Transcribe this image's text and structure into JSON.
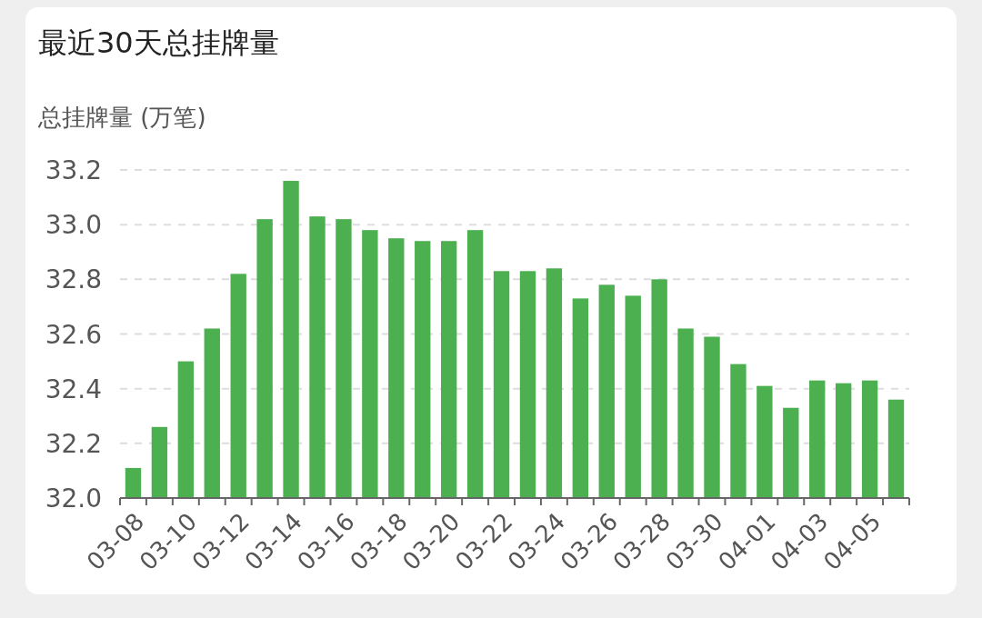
{
  "chart_data": {
    "type": "bar",
    "title": "最近30天总挂牌量",
    "ylabel": "总挂牌量 (万笔)",
    "categories": [
      "03-08",
      null,
      "03-10",
      null,
      "03-12",
      null,
      "03-14",
      null,
      "03-16",
      null,
      "03-18",
      null,
      "03-20",
      null,
      "03-22",
      null,
      "03-24",
      null,
      "03-26",
      null,
      "03-28",
      null,
      "03-30",
      null,
      "04-01",
      null,
      "04-03",
      null,
      "04-05",
      null
    ],
    "values": [
      32.11,
      32.26,
      32.5,
      32.62,
      32.82,
      33.02,
      33.16,
      33.03,
      33.02,
      32.98,
      32.95,
      32.94,
      32.94,
      32.98,
      32.83,
      32.83,
      32.84,
      32.73,
      32.78,
      32.74,
      32.8,
      32.62,
      32.59,
      32.49,
      32.41,
      32.33,
      32.43,
      32.42,
      32.43,
      32.36
    ],
    "color": "#4caf50",
    "ylim": [
      32,
      33.2
    ],
    "yticks": [
      {
        "value": 32,
        "label": "32.0"
      },
      32.2,
      32.4,
      32.6,
      32.8,
      {
        "value": 33,
        "label": "33.0"
      },
      33.2
    ],
    "grid": "y"
  }
}
